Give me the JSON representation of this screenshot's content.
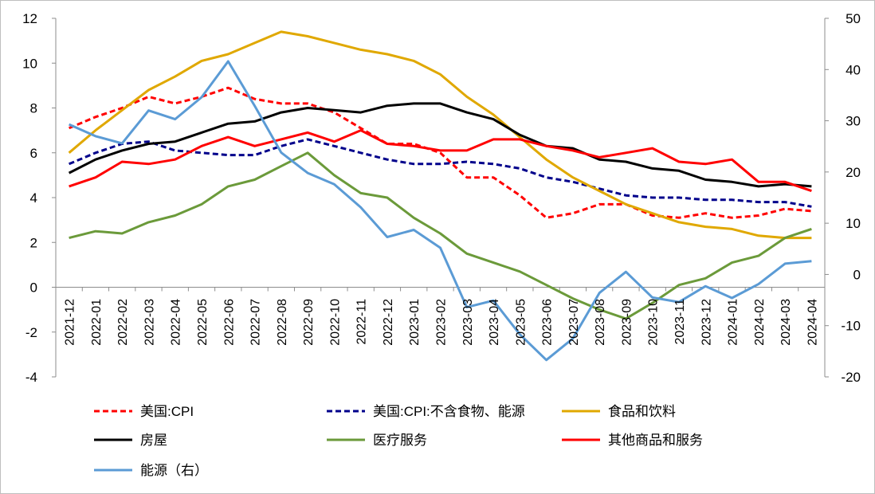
{
  "chart_data": {
    "type": "line",
    "categories": [
      "2021-12",
      "2022-01",
      "2022-02",
      "2022-03",
      "2022-04",
      "2022-05",
      "2022-06",
      "2022-07",
      "2022-08",
      "2022-09",
      "2022-10",
      "2022-11",
      "2022-12",
      "2023-01",
      "2023-02",
      "2023-03",
      "2023-04",
      "2023-05",
      "2023-06",
      "2023-07",
      "2023-08",
      "2023-09",
      "2023-10",
      "2023-11",
      "2023-12",
      "2024-01",
      "2024-02",
      "2024-03",
      "2024-04"
    ],
    "ylim": [
      -4,
      12
    ],
    "y_ticks": [
      -4,
      -2,
      0,
      2,
      4,
      6,
      8,
      10,
      12
    ],
    "y2lim": [
      -20,
      50
    ],
    "y2_ticks": [
      -20,
      -10,
      0,
      10,
      20,
      30,
      40,
      50
    ],
    "grid": false,
    "legend_position": "bottom",
    "series": [
      {
        "name": "美国:CPI",
        "axis": "left",
        "color": "#ff0000",
        "dash": "dashed",
        "values": [
          7.1,
          7.6,
          8.0,
          8.5,
          8.2,
          8.5,
          8.9,
          8.4,
          8.2,
          8.2,
          7.8,
          7.1,
          6.4,
          6.4,
          6.0,
          4.9,
          4.9,
          4.1,
          3.1,
          3.3,
          3.7,
          3.7,
          3.2,
          3.1,
          3.3,
          3.1,
          3.2,
          3.5,
          3.4
        ]
      },
      {
        "name": "美国:CPI:不含食物、能源",
        "axis": "left",
        "color": "#00008b",
        "dash": "dashed",
        "values": [
          5.5,
          6.0,
          6.4,
          6.5,
          6.1,
          6.0,
          5.9,
          5.9,
          6.3,
          6.6,
          6.3,
          6.0,
          5.7,
          5.5,
          5.5,
          5.6,
          5.5,
          5.3,
          4.9,
          4.7,
          4.4,
          4.1,
          4.0,
          4.0,
          3.9,
          3.9,
          3.8,
          3.8,
          3.6
        ]
      },
      {
        "name": "食品和饮料",
        "axis": "left",
        "color": "#e0a800",
        "dash": "solid",
        "values": [
          6.0,
          7.0,
          7.9,
          8.8,
          9.4,
          10.1,
          10.4,
          10.9,
          11.4,
          11.2,
          10.9,
          10.6,
          10.4,
          10.1,
          9.5,
          8.5,
          7.7,
          6.7,
          5.7,
          4.9,
          4.3,
          3.7,
          3.3,
          2.9,
          2.7,
          2.6,
          2.3,
          2.2,
          2.2
        ]
      },
      {
        "name": "房屋",
        "axis": "left",
        "color": "#000000",
        "dash": "solid",
        "values": [
          5.1,
          5.7,
          6.1,
          6.4,
          6.5,
          6.9,
          7.3,
          7.4,
          7.8,
          8.0,
          7.9,
          7.8,
          8.1,
          8.2,
          8.2,
          7.8,
          7.5,
          6.8,
          6.3,
          6.2,
          5.7,
          5.6,
          5.3,
          5.2,
          4.8,
          4.7,
          4.5,
          4.6,
          4.5
        ]
      },
      {
        "name": "医疗服务",
        "axis": "left",
        "color": "#6b9a3a",
        "dash": "solid",
        "values": [
          2.2,
          2.5,
          2.4,
          2.9,
          3.2,
          3.7,
          4.5,
          4.8,
          5.4,
          6.0,
          5.0,
          4.2,
          4.0,
          3.1,
          2.4,
          1.5,
          1.1,
          0.7,
          0.1,
          -0.5,
          -1.0,
          -1.4,
          -0.7,
          0.1,
          0.4,
          1.1,
          1.4,
          2.2,
          2.6
        ]
      },
      {
        "name": "其他商品和服务",
        "axis": "left",
        "color": "#ff0000",
        "dash": "solid",
        "values": [
          4.5,
          4.9,
          5.6,
          5.5,
          5.7,
          6.3,
          6.7,
          6.3,
          6.6,
          6.9,
          6.5,
          7.0,
          6.4,
          6.3,
          6.1,
          6.1,
          6.6,
          6.6,
          6.3,
          6.1,
          5.8,
          6.0,
          6.2,
          5.6,
          5.5,
          5.7,
          4.7,
          4.7,
          4.3
        ]
      },
      {
        "name": "能源（右）",
        "axis": "right",
        "color": "#5b9bd5",
        "dash": "solid",
        "values": [
          29.3,
          27.0,
          25.6,
          32.0,
          30.3,
          34.6,
          41.6,
          32.9,
          23.8,
          19.8,
          17.6,
          13.1,
          7.3,
          8.7,
          5.2,
          -6.4,
          -5.1,
          -11.7,
          -16.7,
          -12.5,
          -3.6,
          0.5,
          -4.5,
          -5.4,
          -2.3,
          -4.6,
          -1.9,
          2.1,
          2.6
        ]
      }
    ]
  }
}
